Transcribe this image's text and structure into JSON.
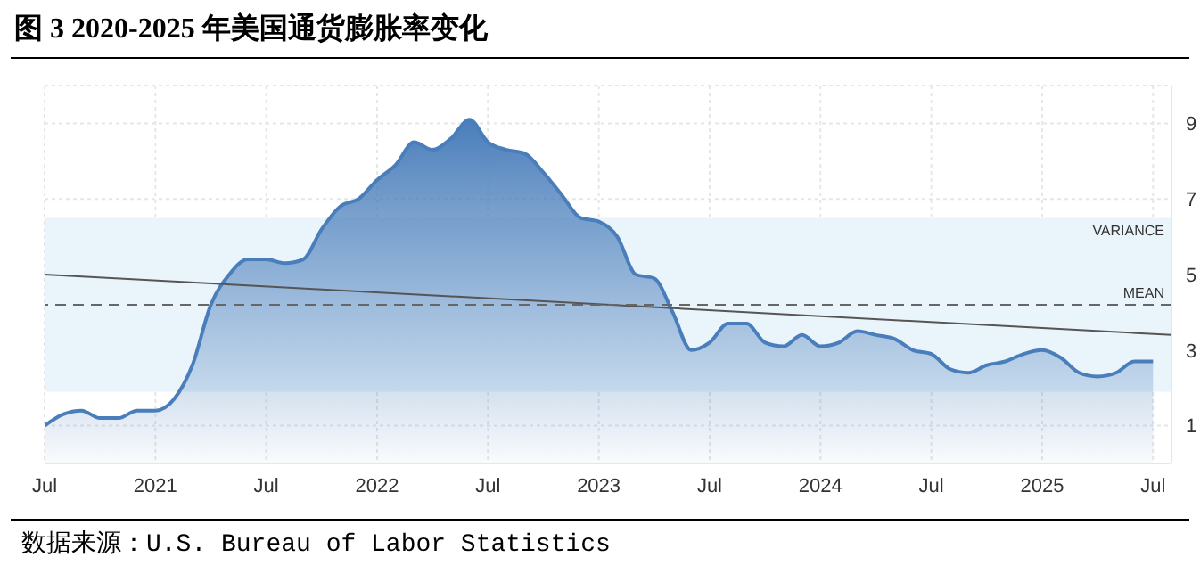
{
  "chart_data": {
    "type": "area",
    "title": "图 3 2020-2025 年美国通货膨胀率变化",
    "annotations": [
      "数据来源：U.S. Bureau of Labor Statistics"
    ],
    "x": [
      "2020-07",
      "2020-08",
      "2020-09",
      "2020-10",
      "2020-11",
      "2020-12",
      "2021-01",
      "2021-02",
      "2021-03",
      "2021-04",
      "2021-05",
      "2021-06",
      "2021-07",
      "2021-08",
      "2021-09",
      "2021-10",
      "2021-11",
      "2021-12",
      "2022-01",
      "2022-02",
      "2022-03",
      "2022-04",
      "2022-05",
      "2022-06",
      "2022-07",
      "2022-08",
      "2022-09",
      "2022-10",
      "2022-11",
      "2022-12",
      "2023-01",
      "2023-02",
      "2023-03",
      "2023-04",
      "2023-05",
      "2023-06",
      "2023-07",
      "2023-08",
      "2023-09",
      "2023-10",
      "2023-11",
      "2023-12",
      "2024-01",
      "2024-02",
      "2024-03",
      "2024-04",
      "2024-05",
      "2024-06",
      "2024-07",
      "2024-08",
      "2024-09",
      "2024-10",
      "2024-11",
      "2024-12",
      "2025-01",
      "2025-02",
      "2025-03",
      "2025-04",
      "2025-05",
      "2025-06",
      "2025-07"
    ],
    "series": [
      {
        "color": "#4a7ebb",
        "values": [
          1.0,
          1.3,
          1.4,
          1.2,
          1.2,
          1.4,
          1.4,
          1.7,
          2.6,
          4.2,
          5.0,
          5.4,
          5.4,
          5.3,
          5.4,
          6.2,
          6.8,
          7.0,
          7.5,
          7.9,
          8.5,
          8.3,
          8.6,
          9.1,
          8.5,
          8.3,
          8.2,
          7.7,
          7.1,
          6.5,
          6.4,
          6.0,
          5.0,
          4.9,
          4.0,
          3.0,
          3.2,
          3.7,
          3.7,
          3.2,
          3.1,
          3.4,
          3.1,
          3.2,
          3.5,
          3.4,
          3.3,
          3.0,
          2.9,
          2.5,
          2.4,
          2.6,
          2.7,
          2.9,
          3.0,
          2.8,
          2.4,
          2.3,
          2.4,
          2.7,
          2.7
        ]
      },
      {
        "type": "line",
        "color": "#555555",
        "x": [
          "2020-07",
          "2025-08"
        ],
        "values": [
          5.0,
          3.4
        ]
      }
    ],
    "xlim": [
      "2020-07",
      "2025-08"
    ],
    "xticks": [
      {
        "value": "2020-07",
        "label": "Jul"
      },
      {
        "value": "2021-01",
        "label": "2021"
      },
      {
        "value": "2021-07",
        "label": "Jul"
      },
      {
        "value": "2022-01",
        "label": "2022"
      },
      {
        "value": "2022-07",
        "label": "Jul"
      },
      {
        "value": "2023-01",
        "label": "2023"
      },
      {
        "value": "2023-07",
        "label": "Jul"
      },
      {
        "value": "2024-01",
        "label": "2024"
      },
      {
        "value": "2024-07",
        "label": "Jul"
      },
      {
        "value": "2025-01",
        "label": "2025"
      },
      {
        "value": "2025-07",
        "label": "Jul"
      }
    ],
    "ylim": [
      0,
      10
    ],
    "yticks": [
      1,
      3,
      5,
      7,
      9
    ],
    "ref_lines": [
      {
        "axis": "y",
        "value": 4.2,
        "label": "MEAN",
        "color": "#666666",
        "line_style": "dashed"
      }
    ],
    "bands": [
      {
        "axis": "y",
        "from": 1.9,
        "to": 6.5,
        "label": "VARIANCE",
        "color": "#eaf4fb"
      }
    ],
    "grid": true,
    "legend": false
  }
}
